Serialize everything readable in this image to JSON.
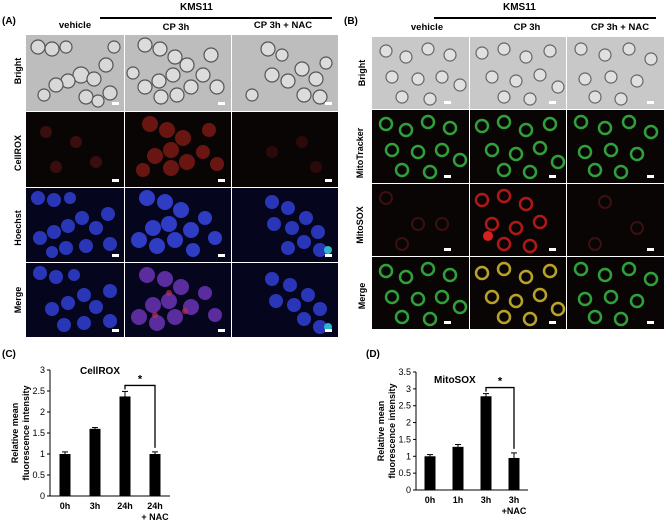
{
  "panelA": {
    "label": "(A)",
    "cellline": "KMS11",
    "columns": [
      "vehicle",
      "CP 3h",
      "CP 3h + NAC"
    ],
    "rows": [
      "Bright",
      "CellROX",
      "Hoechst",
      "Merge"
    ]
  },
  "panelB": {
    "label": "(B)",
    "cellline": "KMS11",
    "columns": [
      "vehicle",
      "CP 3h",
      "CP 3h + NAC"
    ],
    "rows": [
      "Bright",
      "MitoTracker",
      "MitoSOX",
      "Merge"
    ]
  },
  "panelC": {
    "label": "(C)"
  },
  "panelD": {
    "label": "(D)"
  },
  "chart_data": [
    {
      "type": "bar",
      "title": "CellROX",
      "ylabel": "Relative mean fluorescence intensity",
      "categories": [
        "0h",
        "3h",
        "24h",
        "24h + NAC"
      ],
      "values": [
        1.0,
        1.6,
        2.37,
        1.0
      ],
      "errors": [
        0.05,
        0.03,
        0.12,
        0.05
      ],
      "ylim": [
        0,
        3
      ],
      "yticks": [
        "0",
        "0.5",
        "1",
        "1.5",
        "2",
        "2.5",
        "3"
      ],
      "significance": "*",
      "color": "#000000"
    },
    {
      "type": "bar",
      "title": "MitoSOX",
      "ylabel": "Relative mean fluorescence intensity",
      "categories": [
        "0h",
        "1h",
        "3h",
        "3h +NAC"
      ],
      "values": [
        1.0,
        1.28,
        2.78,
        0.95
      ],
      "errors": [
        0.05,
        0.07,
        0.08,
        0.15
      ],
      "ylim": [
        0,
        3.5
      ],
      "yticks": [
        "0",
        "0.5",
        "1",
        "1.5",
        "2",
        "2.5",
        "3",
        "3.5"
      ],
      "significance": "*",
      "color": "#000000"
    }
  ]
}
